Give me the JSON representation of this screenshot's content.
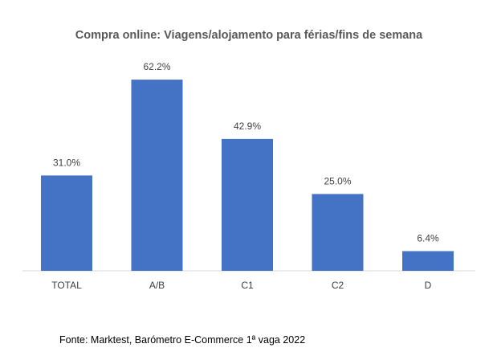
{
  "chart_data": {
    "type": "bar",
    "title": "Compra online: Viagens/alojamento para férias/fins de semana",
    "categories": [
      "TOTAL",
      "A/B",
      "C1",
      "C2",
      "D"
    ],
    "values": [
      31.0,
      62.2,
      42.9,
      25.0,
      6.4
    ],
    "data_labels": [
      "31.0%",
      "62.2%",
      "42.9%",
      "25.0%",
      "6.4%"
    ],
    "unit": "%",
    "ylim": [
      0,
      70
    ],
    "grid": false,
    "legend": "none",
    "bar_color": "#4472C4"
  },
  "source": "Fonte: Marktest, Barómetro E-Commerce 1ª vaga 2022"
}
